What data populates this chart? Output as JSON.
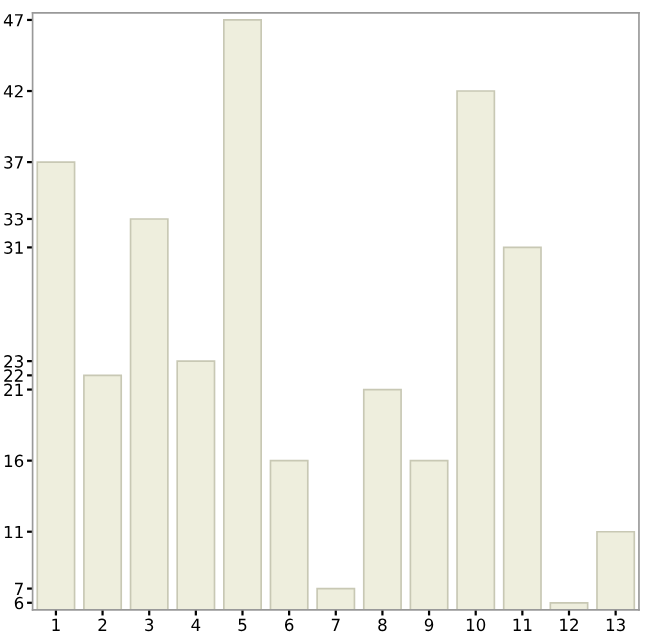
{
  "chart_data": {
    "type": "bar",
    "categories": [
      "1",
      "2",
      "3",
      "4",
      "5",
      "6",
      "7",
      "8",
      "9",
      "10",
      "11",
      "12",
      "13"
    ],
    "values": [
      37,
      22,
      33,
      23,
      47,
      16,
      7,
      21,
      16,
      42,
      31,
      6,
      11
    ],
    "color": "#eeeedd",
    "ylim": [
      5.5,
      47.5
    ],
    "yticks": [
      6,
      7,
      11,
      16,
      21,
      22,
      23,
      31,
      33,
      37,
      42,
      47
    ],
    "grid": false,
    "legend": false
  }
}
